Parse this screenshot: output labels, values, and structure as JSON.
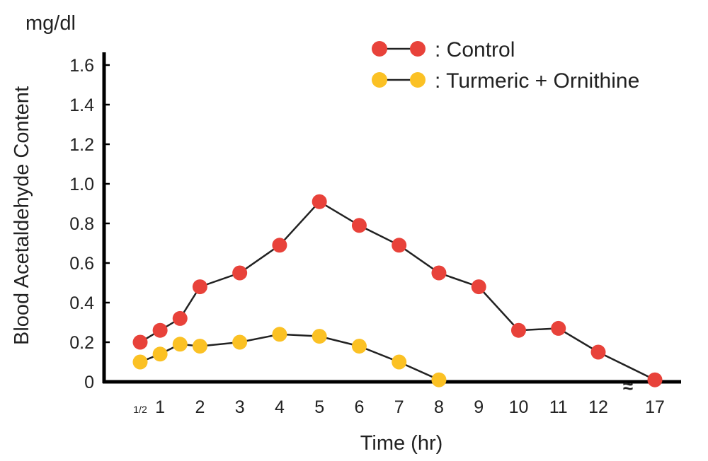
{
  "chart_data": {
    "type": "line",
    "unit_label": "mg/dl",
    "xlabel": "Time (hr)",
    "ylabel": "Blood Acetaldehyde Content",
    "ylim": [
      0,
      1.6
    ],
    "yticks": [
      "0",
      "0.2",
      "0.4",
      "0.6",
      "0.8",
      "1.0",
      "1.2",
      "1.4",
      "1.6"
    ],
    "xticks": [
      "1/2",
      "1",
      "2",
      "3",
      "4",
      "5",
      "6",
      "7",
      "8",
      "9",
      "10",
      "11",
      "12",
      "17"
    ],
    "axis_break": "≈",
    "grid": false,
    "legend_position": "top-right",
    "series": [
      {
        "name": "Control",
        "legend_label": ":  Control",
        "color": "#e8423a",
        "x": [
          0.5,
          1,
          1.5,
          2,
          3,
          4,
          5,
          6,
          7,
          8,
          9,
          10,
          11,
          12,
          17
        ],
        "y": [
          0.2,
          0.26,
          0.32,
          0.48,
          0.55,
          0.69,
          0.91,
          0.79,
          0.69,
          0.55,
          0.48,
          0.26,
          0.27,
          0.15,
          0.01
        ]
      },
      {
        "name": "Turmeric + Ornithine",
        "legend_label": ":  Turmeric + Ornithine",
        "color": "#fbc124",
        "x": [
          0.5,
          1,
          1.5,
          2,
          3,
          4,
          5,
          6,
          7,
          8
        ],
        "y": [
          0.1,
          0.14,
          0.19,
          0.18,
          0.2,
          0.24,
          0.23,
          0.18,
          0.1,
          0.01
        ]
      }
    ]
  }
}
